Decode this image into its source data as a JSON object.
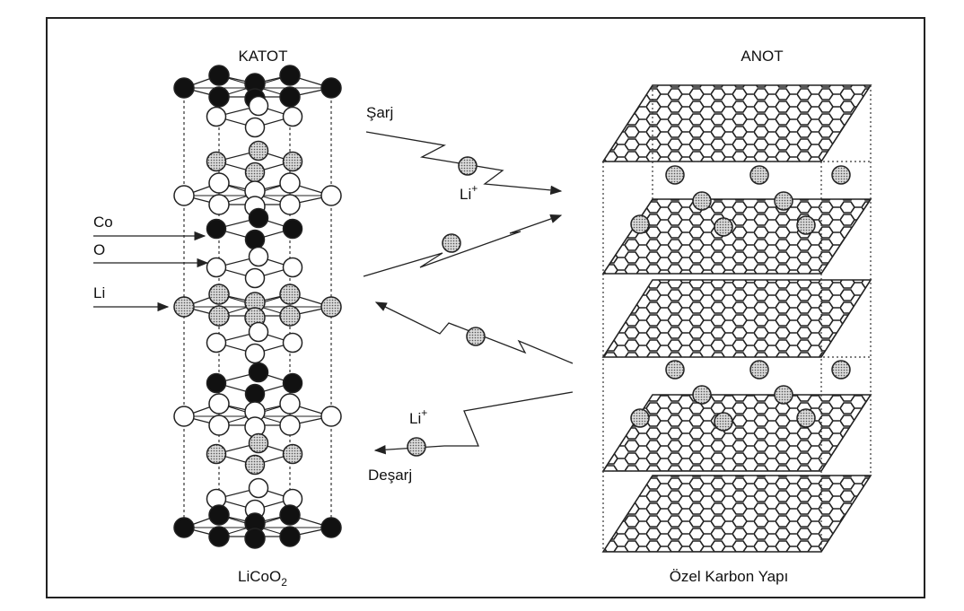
{
  "cathode": {
    "title": "KATOT",
    "formula_main": "LiCoO",
    "formula_sub": "2",
    "labels": {
      "co": "Co",
      "o": "O",
      "li": "Li"
    }
  },
  "anode": {
    "title": "ANOT",
    "caption": "Özel Karbon Yapı"
  },
  "process": {
    "charge": "Şarj",
    "discharge": "Deşarj",
    "ion_top": "Li",
    "ion_bottom": "Li",
    "ion_charge": "+"
  },
  "colors": {
    "frame": "#222222",
    "cobalt": "#111111",
    "oxygen": "#ffffff",
    "lithium": "#bdbdbd"
  }
}
